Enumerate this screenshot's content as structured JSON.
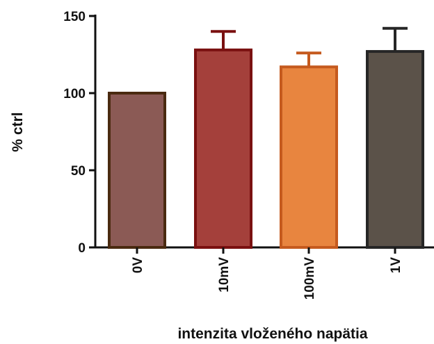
{
  "chart_data": {
    "type": "bar",
    "categories": [
      "0V",
      "10mV",
      "100mV",
      "1V"
    ],
    "values": [
      100,
      128,
      117,
      127
    ],
    "errors": [
      0,
      12,
      9,
      15
    ],
    "colors": {
      "fill": [
        "#8b5a55",
        "#a4403b",
        "#e8853f",
        "#5b5249"
      ],
      "stroke": [
        "#4a2a10",
        "#7a1010",
        "#c55a1e",
        "#262626"
      ],
      "error": [
        "#4a2a10",
        "#7a1010",
        "#c55a1e",
        "#262626"
      ]
    },
    "xlabel": "intenzita vloženého napätia",
    "ylabel": "% ctrl",
    "ylim": [
      0,
      150
    ],
    "yticks": [
      0,
      50,
      100,
      150
    ],
    "grid": false
  }
}
